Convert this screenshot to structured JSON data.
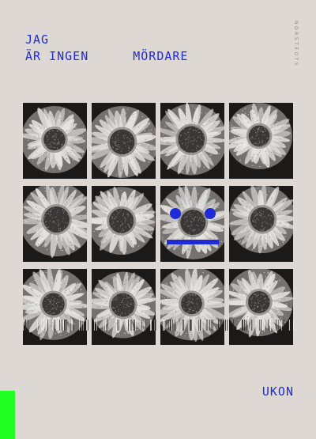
{
  "cover": {
    "title_line1": "JAG",
    "title_line2_left": "ÄR INGEN",
    "title_line2_right": "MÖRDARE",
    "publisher": "NORSTEDTS",
    "author": "UKON"
  },
  "colors": {
    "background": "#ddd8d3",
    "title_blue": "#1f2bd6",
    "accent_green": "#22ff22",
    "tile_dark": "#1c1a19",
    "petal": "#e8e6e3",
    "center": "#3a3836",
    "face_blue": "#1f2bd6"
  },
  "grid": {
    "rows": 3,
    "columns": 4,
    "tiles": [
      {
        "motif": "daisy-flower"
      },
      {
        "motif": "daisy-flower"
      },
      {
        "motif": "daisy-flower"
      },
      {
        "motif": "daisy-flower"
      },
      {
        "motif": "daisy-flower"
      },
      {
        "motif": "daisy-flower"
      },
      {
        "motif": "daisy-flower-face"
      },
      {
        "motif": "daisy-flower"
      },
      {
        "motif": "daisy-flower"
      },
      {
        "motif": "daisy-flower"
      },
      {
        "motif": "daisy-flower"
      },
      {
        "motif": "daisy-flower"
      }
    ]
  }
}
